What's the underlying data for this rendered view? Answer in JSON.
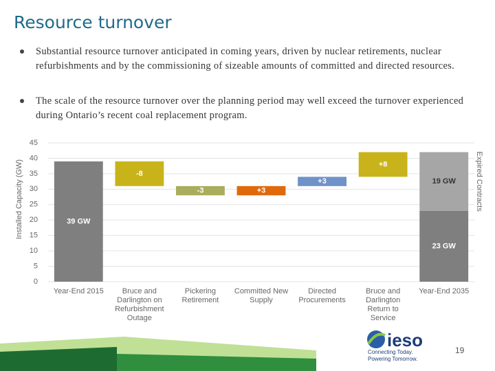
{
  "slide": {
    "title": "Resource turnover",
    "bullets": [
      "Substantial resource turnover anticipated in coming years, driven by nuclear retirements, nuclear refurbishments and by the commissioning of sizeable amounts of committed and directed resources.",
      "The scale of the resource turnover  over the planning period may well exceed the turnover experienced during Ontario’s recent coal replacement program."
    ],
    "logo": "ieso",
    "tagline": [
      "Connecting Today.",
      "Powering Tomorrow."
    ],
    "page_number": "19"
  },
  "chart_data": {
    "type": "waterfall",
    "ylabel": "Installed Capacity (GW)",
    "categories": [
      "Year-End 2015",
      "Bruce and Darlington on Refurbishment Outage",
      "Pickering Retirement",
      "Committed New Supply",
      "Directed Procurements",
      "Bruce and Darlington Return to Service",
      "Year-End 2035"
    ],
    "values": [
      39,
      -8,
      -3,
      3,
      3,
      8,
      null
    ],
    "value_labels": [
      "39 GW",
      "-8",
      "-3",
      "+3",
      "+3",
      "+8",
      null
    ],
    "colors": [
      "#7f7f7f",
      "#c8b41a",
      "#a9ad5c",
      "#e0690c",
      "#6f92c8",
      "#c8b41a",
      "#7f7f7f"
    ],
    "stack": [
      {
        "value": 23,
        "value_label": "23 GW",
        "color": "#7f7f7f"
      },
      {
        "name": "Expired Contracts",
        "value": 19,
        "value_label": "19 GW",
        "color": "#a6a6a6"
      }
    ],
    "ylim": [
      0,
      45
    ],
    "yticks": [
      0,
      5,
      10,
      15,
      20,
      25,
      30,
      35,
      40,
      45
    ],
    "grid": true
  }
}
